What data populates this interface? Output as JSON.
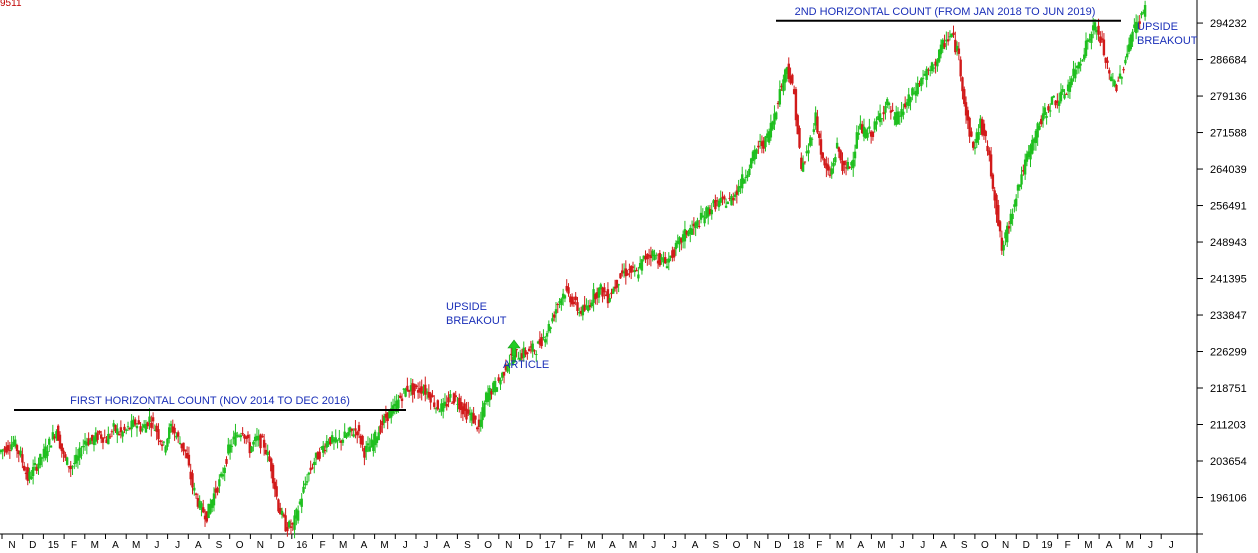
{
  "top_left_value": "9511",
  "colors": {
    "up": "#1fbf1f",
    "down": "#d11a1a",
    "annotation": "#1a2fb8",
    "arrow": "#22cc22",
    "axis": "#000000"
  },
  "chart_data": {
    "type": "candlestick",
    "title": "",
    "ylim": [
      188558,
      299000
    ],
    "y_ticks": [
      196106,
      203654,
      211203,
      218751,
      226299,
      233847,
      241395,
      248943,
      256491,
      264039,
      271588,
      279136,
      286684,
      294232
    ],
    "y_tick_labels": [
      "196106",
      "203654",
      "211203",
      "218751",
      "226299",
      "233847",
      "241395",
      "248943",
      "256491",
      "264039",
      "271588",
      "279136",
      "286684",
      "294232"
    ],
    "x_tick_labels": [
      "N",
      "D",
      "15",
      "F",
      "M",
      "A",
      "M",
      "J",
      "J",
      "A",
      "S",
      "O",
      "N",
      "D",
      "16",
      "F",
      "M",
      "A",
      "M",
      "J",
      "J",
      "A",
      "S",
      "O",
      "N",
      "D",
      "17",
      "F",
      "M",
      "A",
      "M",
      "J",
      "J",
      "A",
      "S",
      "O",
      "N",
      "D",
      "18",
      "F",
      "M",
      "A",
      "M",
      "J",
      "J",
      "A",
      "S",
      "O",
      "N",
      "D",
      "19",
      "F",
      "M",
      "A",
      "M",
      "J",
      "J"
    ],
    "x_start": "2014-11",
    "series": [
      {
        "period": "2014-11 to 2016-06",
        "values": [
          205500,
          206500,
          207500,
          204800,
          200000,
          202300,
          204500,
          207300,
          210200,
          204500,
          202300,
          204200,
          208000,
          207800,
          209200,
          208100,
          210300,
          209300,
          210200,
          211600,
          210300,
          212400,
          210000,
          206500,
          210900,
          208200,
          205500,
          198400,
          194200,
          192400,
          196800,
          200000,
          205800,
          208800,
          210200,
          206200,
          208200,
          207000,
          202400,
          194200,
          190200,
          190000,
          195100,
          200300,
          203700,
          205900,
          208300,
          207300,
          208400,
          209500,
          210100,
          205600,
          207000,
          210000
        ]
      },
      {
        "period": "2016-07 to 2017-12",
        "values": [
          212800,
          214200,
          216800,
          218900,
          218200,
          218600,
          217700,
          215000,
          214500,
          216800,
          216300,
          213700,
          212900,
          210300,
          217000,
          218800,
          220600,
          224200,
          225600,
          225800,
          226500,
          227000,
          229300,
          232100,
          236400,
          238800,
          237000,
          234600,
          235000,
          238100,
          239100,
          237500,
          240000,
          242500,
          243000,
          242300,
          245400,
          246700,
          245600,
          244600,
          246400,
          248800,
          251100,
          251800,
          253700,
          255400,
          256900,
          257200,
          257300,
          259800,
          262400,
          265700,
          268800,
          269700
        ]
      },
      {
        "period": "2018-01 to 2019-07",
        "values": [
          274000,
          280100,
          285400,
          279300,
          263800,
          268300,
          274900,
          265400,
          262600,
          268700,
          263600,
          265400,
          272400,
          271500,
          271800,
          275300,
          277500,
          274200,
          275700,
          278300,
          280600,
          283200,
          284200,
          286900,
          290400,
          291700,
          287300,
          275200,
          268200,
          273600,
          268300,
          258400,
          247200,
          252600,
          259100,
          264000,
          268200,
          272500,
          275500,
          278100,
          278400,
          280300,
          283600,
          286800,
          290600,
          293600,
          289800,
          283000,
          281300,
          285200,
          291600,
          294500,
          297000
        ]
      }
    ],
    "lines": [
      {
        "label": "FIRST HORIZONTAL COUNT (NOV 2014 TO DEC 2016)",
        "level": 214200,
        "from": "2014-11",
        "to": "2016-06"
      },
      {
        "label": "2ND HORIZONTAL COUNT (FROM JAN 2018 TO JUN 2019)",
        "level": 294700,
        "from": "2018-01",
        "to": "2019-06"
      }
    ],
    "annotations": [
      {
        "text": "UPSIDE",
        "position": "above first breakout"
      },
      {
        "text": "BREAKOUT",
        "position": "above first breakout"
      },
      {
        "text": "ARTICLE",
        "position": "below arrow"
      },
      {
        "text": "UPSIDE",
        "position": "right of second breakout"
      },
      {
        "text": "BREAKOUT",
        "position": "right of second breakout"
      }
    ]
  }
}
